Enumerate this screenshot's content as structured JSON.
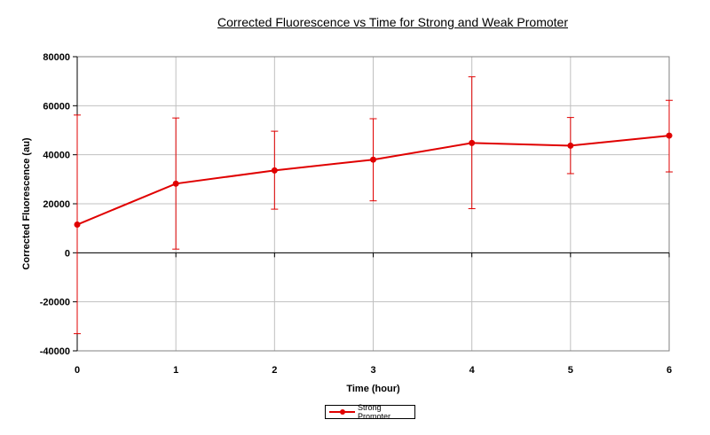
{
  "chart_data": {
    "type": "line",
    "title": "Corrected Fluorescence vs Time for Strong and Weak Promoter",
    "xlabel": "Time (hour)",
    "ylabel": "Corrected Fluorescence (au)",
    "x": [
      0,
      1,
      2,
      3,
      4,
      5,
      6
    ],
    "xlim": [
      0,
      6
    ],
    "ylim": [
      -40000,
      80000
    ],
    "y_ticks": [
      -40000,
      -20000,
      0,
      20000,
      40000,
      60000,
      80000
    ],
    "x_ticks": [
      0,
      1,
      2,
      3,
      4,
      5,
      6
    ],
    "grid": true,
    "legend_position": "bottom-center",
    "series": [
      {
        "name": "Strong Promoter",
        "color": "#e00000",
        "values": [
          11500,
          28200,
          33600,
          38000,
          44800,
          43700,
          47800
        ],
        "error_low": [
          -33000,
          1500,
          17800,
          21200,
          18000,
          32300,
          33000
        ],
        "error_high": [
          56200,
          55000,
          49600,
          54700,
          71800,
          55200,
          62200
        ]
      }
    ]
  }
}
